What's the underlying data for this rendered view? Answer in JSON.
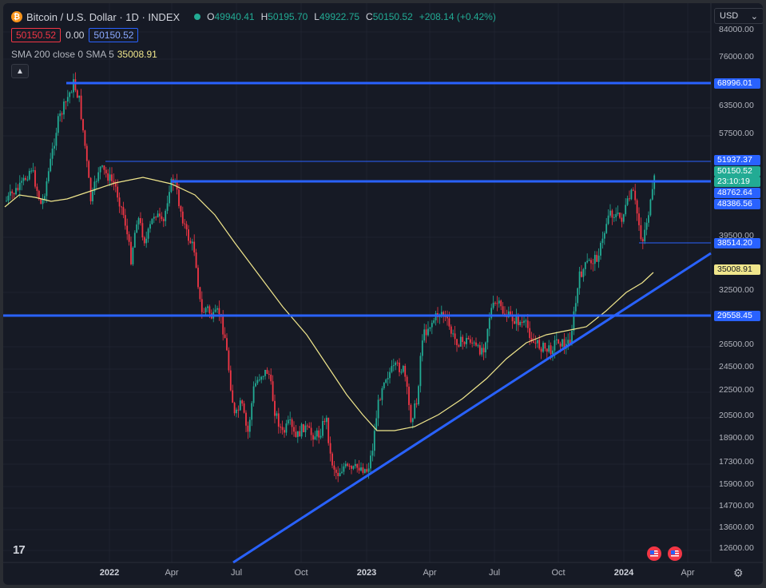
{
  "header": {
    "title": "Bitcoin / U.S. Dollar · 1D · INDEX",
    "coin_glyph": "₿",
    "open_label": "O",
    "open": "49940.41",
    "high_label": "H",
    "high": "50195.70",
    "low_label": "L",
    "low": "49922.75",
    "close_label": "C",
    "close": "50150.52",
    "change": "+208.14 (+0.42%)"
  },
  "trade": {
    "sell": "50150.52",
    "spread": "0.00",
    "buy": "50150.52"
  },
  "indicator": {
    "label": "SMA 200 close 0 SMA 5",
    "value": "35008.91"
  },
  "currency": {
    "label": "USD",
    "chevron": "⌄"
  },
  "price_axis": {
    "ticks": [
      "84000.00",
      "76000.00",
      "63500.00",
      "57500.00",
      "39500.00",
      "32500.00",
      "26500.00",
      "24500.00",
      "22500.00",
      "20500.00",
      "18900.00",
      "17300.00",
      "15900.00",
      "14700.00",
      "13600.00",
      "12600.00"
    ]
  },
  "price_labels": {
    "l68996": "68996.01",
    "l51937": "51937.37",
    "last": "50150.52",
    "countdown": "23:10:19",
    "l48762": "48762.64",
    "l48386": "48386.56",
    "l38514": "38514.20",
    "sma": "35008.91",
    "l29558": "29558.45"
  },
  "time_axis": {
    "ticks": [
      "2022",
      "Apr",
      "Jul",
      "Oct",
      "2023",
      "Apr",
      "Jul",
      "Oct",
      "2024",
      "Apr"
    ]
  },
  "logo": "17",
  "icons": {
    "collapse": "chevron-up-icon",
    "settings": "gear-icon",
    "flags": "us-flag-icon"
  },
  "colors": {
    "up": "#22ab94",
    "down": "#f23645",
    "line": "#2962ff",
    "sma": "#f0e68c",
    "bg": "#161a25"
  }
}
